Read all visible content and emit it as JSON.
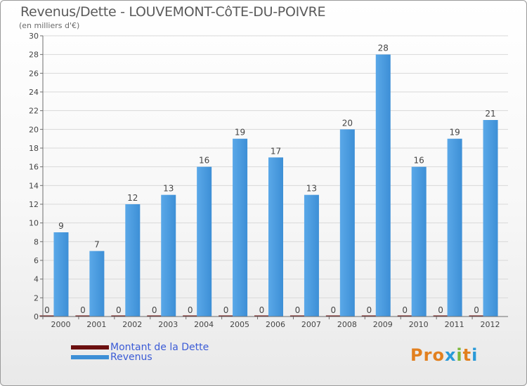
{
  "title": "Revenus/Dette - LOUVEMONT-CôTE-DU-POIVRE",
  "subtitle": "(en milliers d'€)",
  "logo_text": "Proxiti",
  "colors": {
    "revenus": "#3d8fd6",
    "dette": "#6b0f0f",
    "grid": "#d9d9d9",
    "axis": "#6e6e6e",
    "text": "#444444",
    "legend_text": "#3b5bd6",
    "logo": [
      "#e2801f",
      "#e2801f",
      "#e2801f",
      "#2a9ad8",
      "#7cb83a",
      "#e2801f",
      "#2a9ad8"
    ]
  },
  "legend": [
    {
      "label": "Montant de la Dette",
      "color": "#6b0f0f"
    },
    {
      "label": "Revenus",
      "color": "#3d8fd6"
    }
  ],
  "chart_data": {
    "type": "bar",
    "categories": [
      "2000",
      "2001",
      "2002",
      "2003",
      "2004",
      "2005",
      "2006",
      "2007",
      "2008",
      "2009",
      "2010",
      "2011",
      "2012"
    ],
    "series": [
      {
        "name": "Montant de la Dette",
        "values": [
          0,
          0,
          0,
          0,
          0,
          0,
          0,
          0,
          0,
          0,
          0,
          0,
          0
        ]
      },
      {
        "name": "Revenus",
        "values": [
          9,
          7,
          12,
          13,
          16,
          19,
          17,
          13,
          20,
          28,
          16,
          19,
          21
        ]
      }
    ],
    "ylim": [
      0,
      30
    ],
    "yticks": [
      0,
      2,
      4,
      6,
      8,
      10,
      12,
      14,
      16,
      18,
      20,
      22,
      24,
      26,
      28,
      30
    ],
    "grid": true,
    "legend_position": "bottom-left"
  }
}
